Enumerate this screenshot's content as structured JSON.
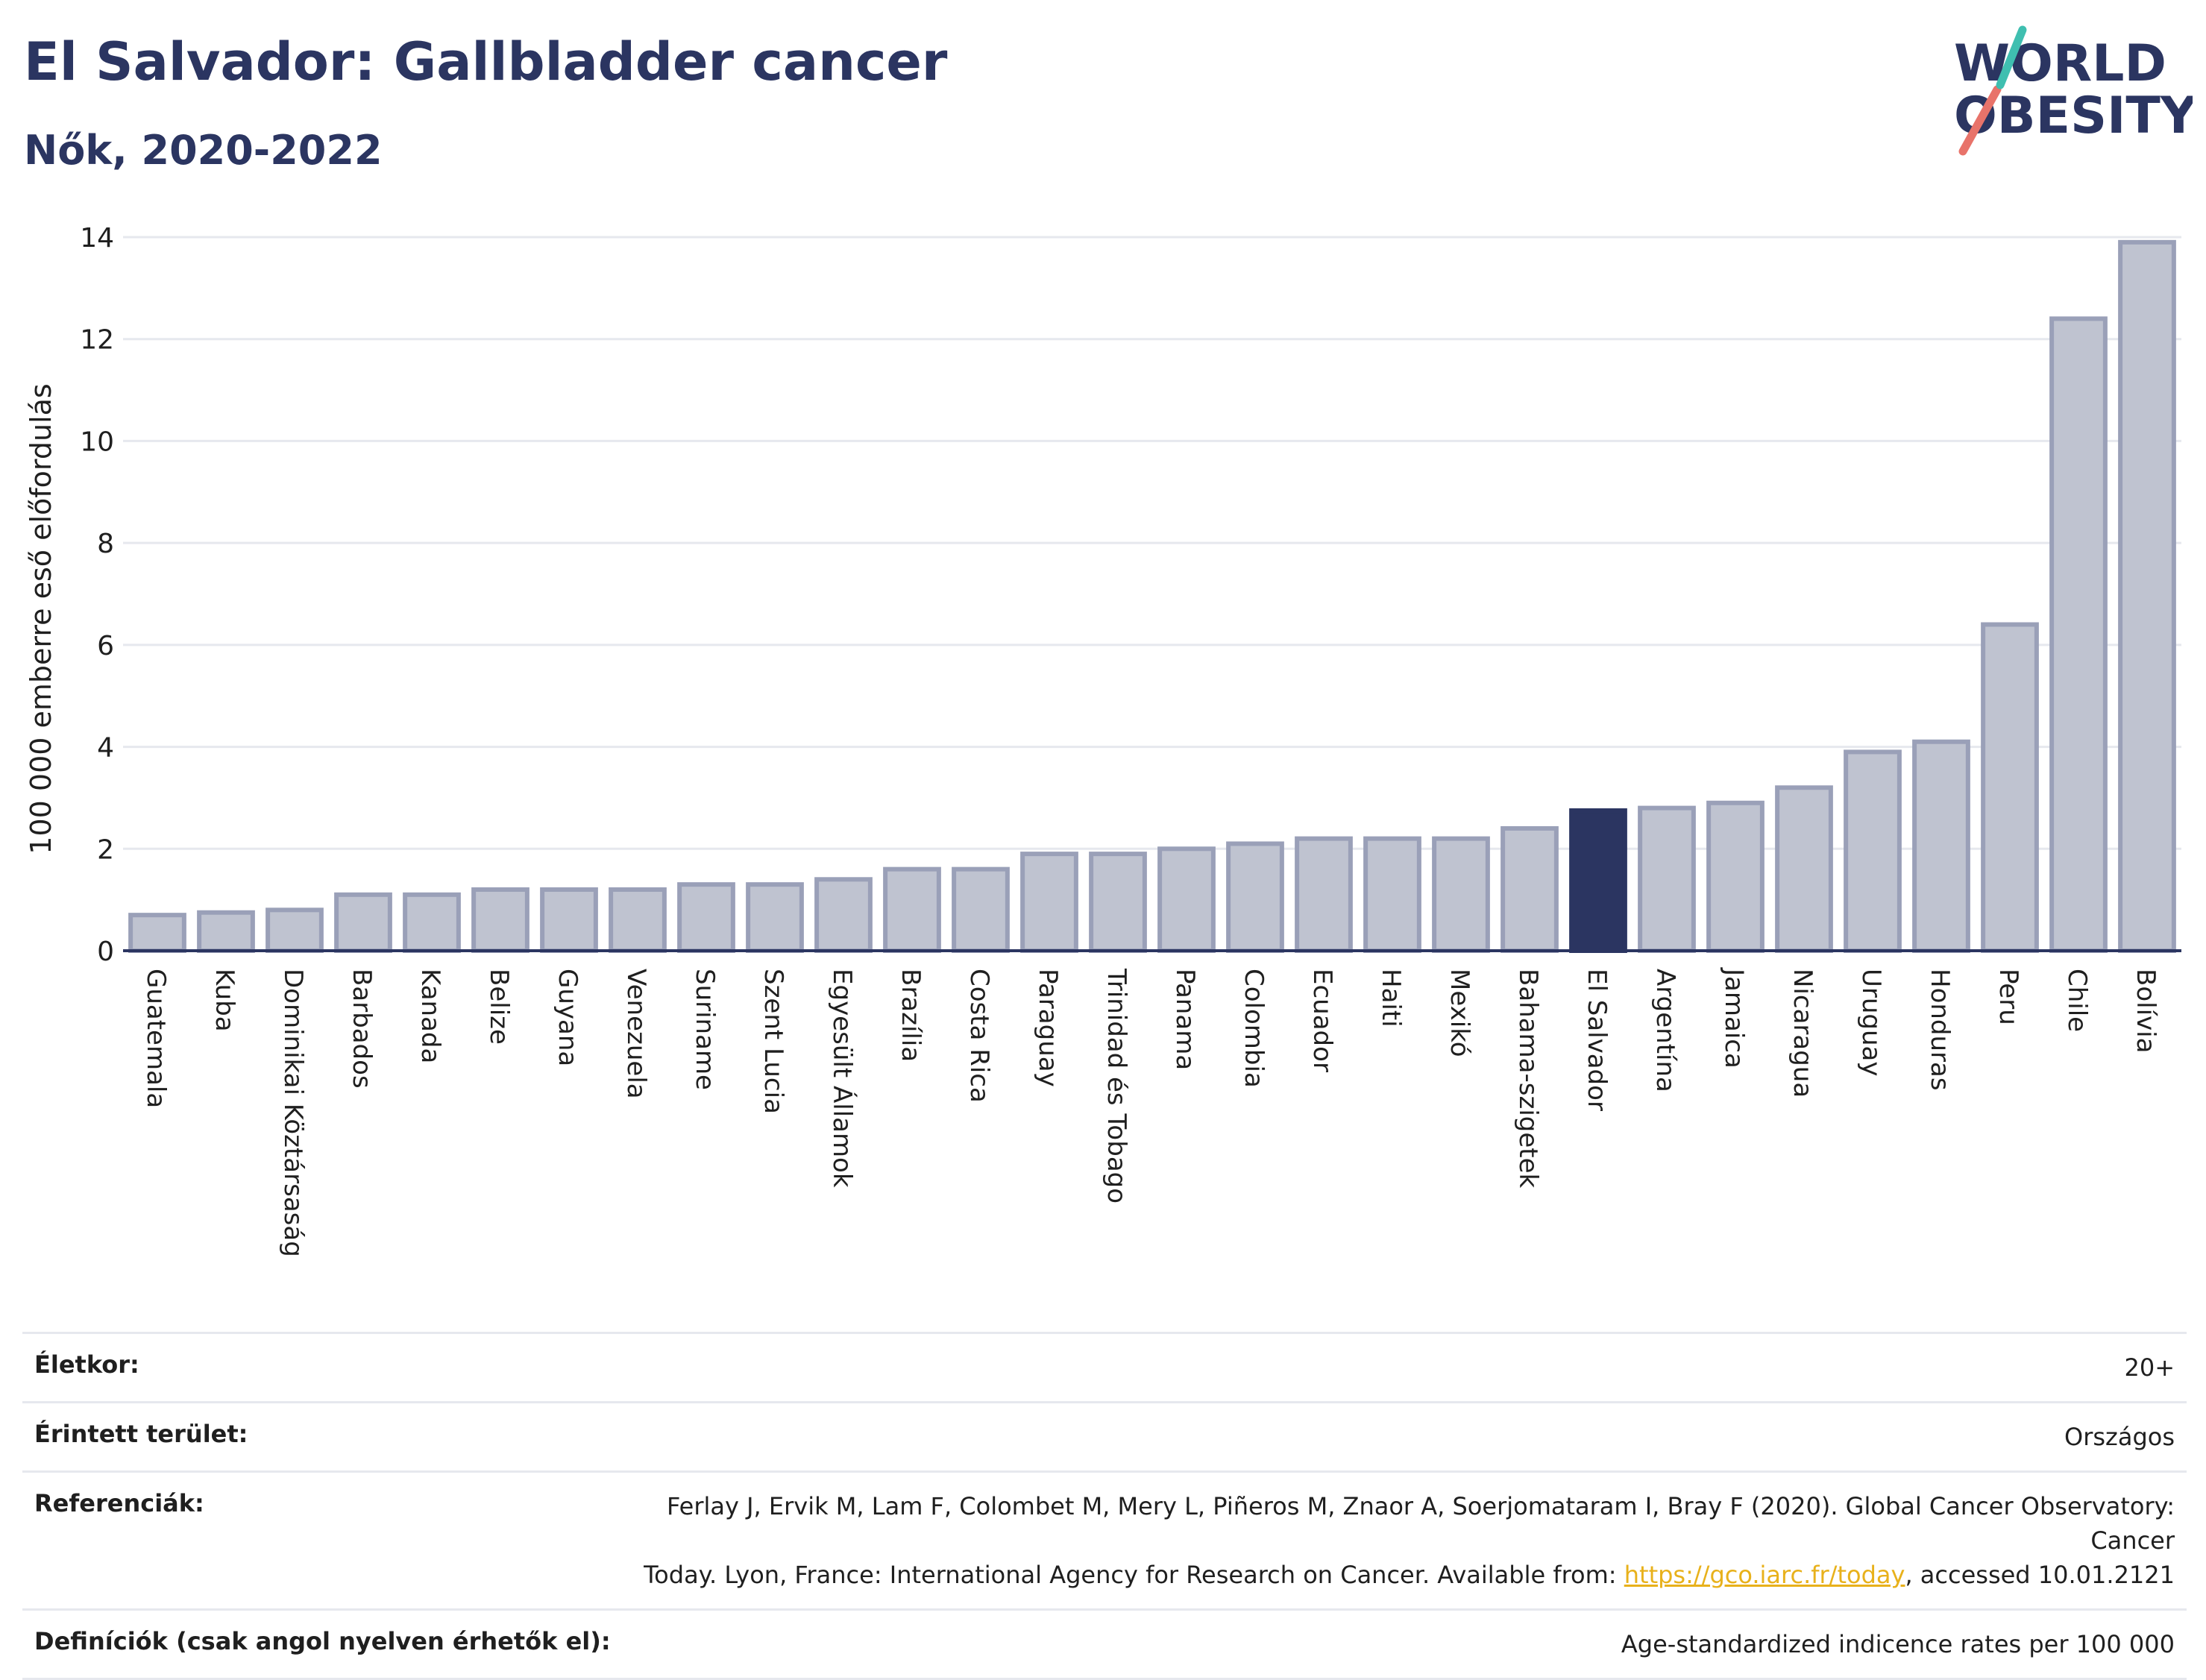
{
  "header": {
    "title": "El Salvador: Gallbladder cancer",
    "subtitle": "Nők, 2020-2022"
  },
  "logo": {
    "line1": "WORLD",
    "line2": "OBESITY"
  },
  "chart_data": {
    "type": "bar",
    "ylabel": "100 000 emberre eső előfordulás",
    "ylim": [
      0,
      14
    ],
    "yticks": [
      0,
      2,
      4,
      6,
      8,
      10,
      12,
      14
    ],
    "grid": true,
    "highlight": "El Salvador",
    "categories": [
      "Guatemala",
      "Kuba",
      "Dominikai Köztársaság",
      "Barbados",
      "Kanada",
      "Belize",
      "Guyana",
      "Venezuela",
      "Suriname",
      "Szent Lucia",
      "Egyesült Államok",
      "Brazília",
      "Costa Rica",
      "Paraguay",
      "Trinidad és Tobago",
      "Panama",
      "Colombia",
      "Ecuador",
      "Haiti",
      "Mexikó",
      "Bahama-szigetek",
      "El Salvador",
      "Argentína",
      "Jamaica",
      "Nicaragua",
      "Uruguay",
      "Honduras",
      "Peru",
      "Chile",
      "Bolívia"
    ],
    "values": [
      0.7,
      0.75,
      0.8,
      1.1,
      1.1,
      1.2,
      1.2,
      1.2,
      1.3,
      1.3,
      1.4,
      1.6,
      1.6,
      1.9,
      1.9,
      2.0,
      2.1,
      2.2,
      2.2,
      2.2,
      2.4,
      2.75,
      2.8,
      2.9,
      3.2,
      3.9,
      4.1,
      6.4,
      12.4,
      13.9
    ]
  },
  "colors": {
    "bar": "#bfc3d0",
    "bar_border": "#9aa0b8",
    "highlight": "#2b3561",
    "axis": "#2b3561",
    "grid": "#e6e8ee",
    "logo_teal": "#3fbfb0",
    "logo_coral": "#e8736a"
  },
  "meta": {
    "age": {
      "label": "Életkor:",
      "value": "20+"
    },
    "area": {
      "label": "Érintett terület:",
      "value": "Országos"
    },
    "references": {
      "label": "Referenciák:",
      "line1": "Ferlay J, Ervik M, Lam F, Colombet M, Mery L, Piñeros M, Znaor A, Soerjomataram I, Bray F (2020). Global Cancer Observatory: Cancer",
      "line2_before": "Today. Lyon, France: International Agency for Research on Cancer. Available from: ",
      "link": "https://gco.iarc.fr/today",
      "line2_after": ", accessed 10.01.2121"
    },
    "definitions": {
      "label": "Definíciók (csak angol nyelven érhetők el):",
      "value": "Age-standardized indicence rates per 100 000"
    }
  }
}
